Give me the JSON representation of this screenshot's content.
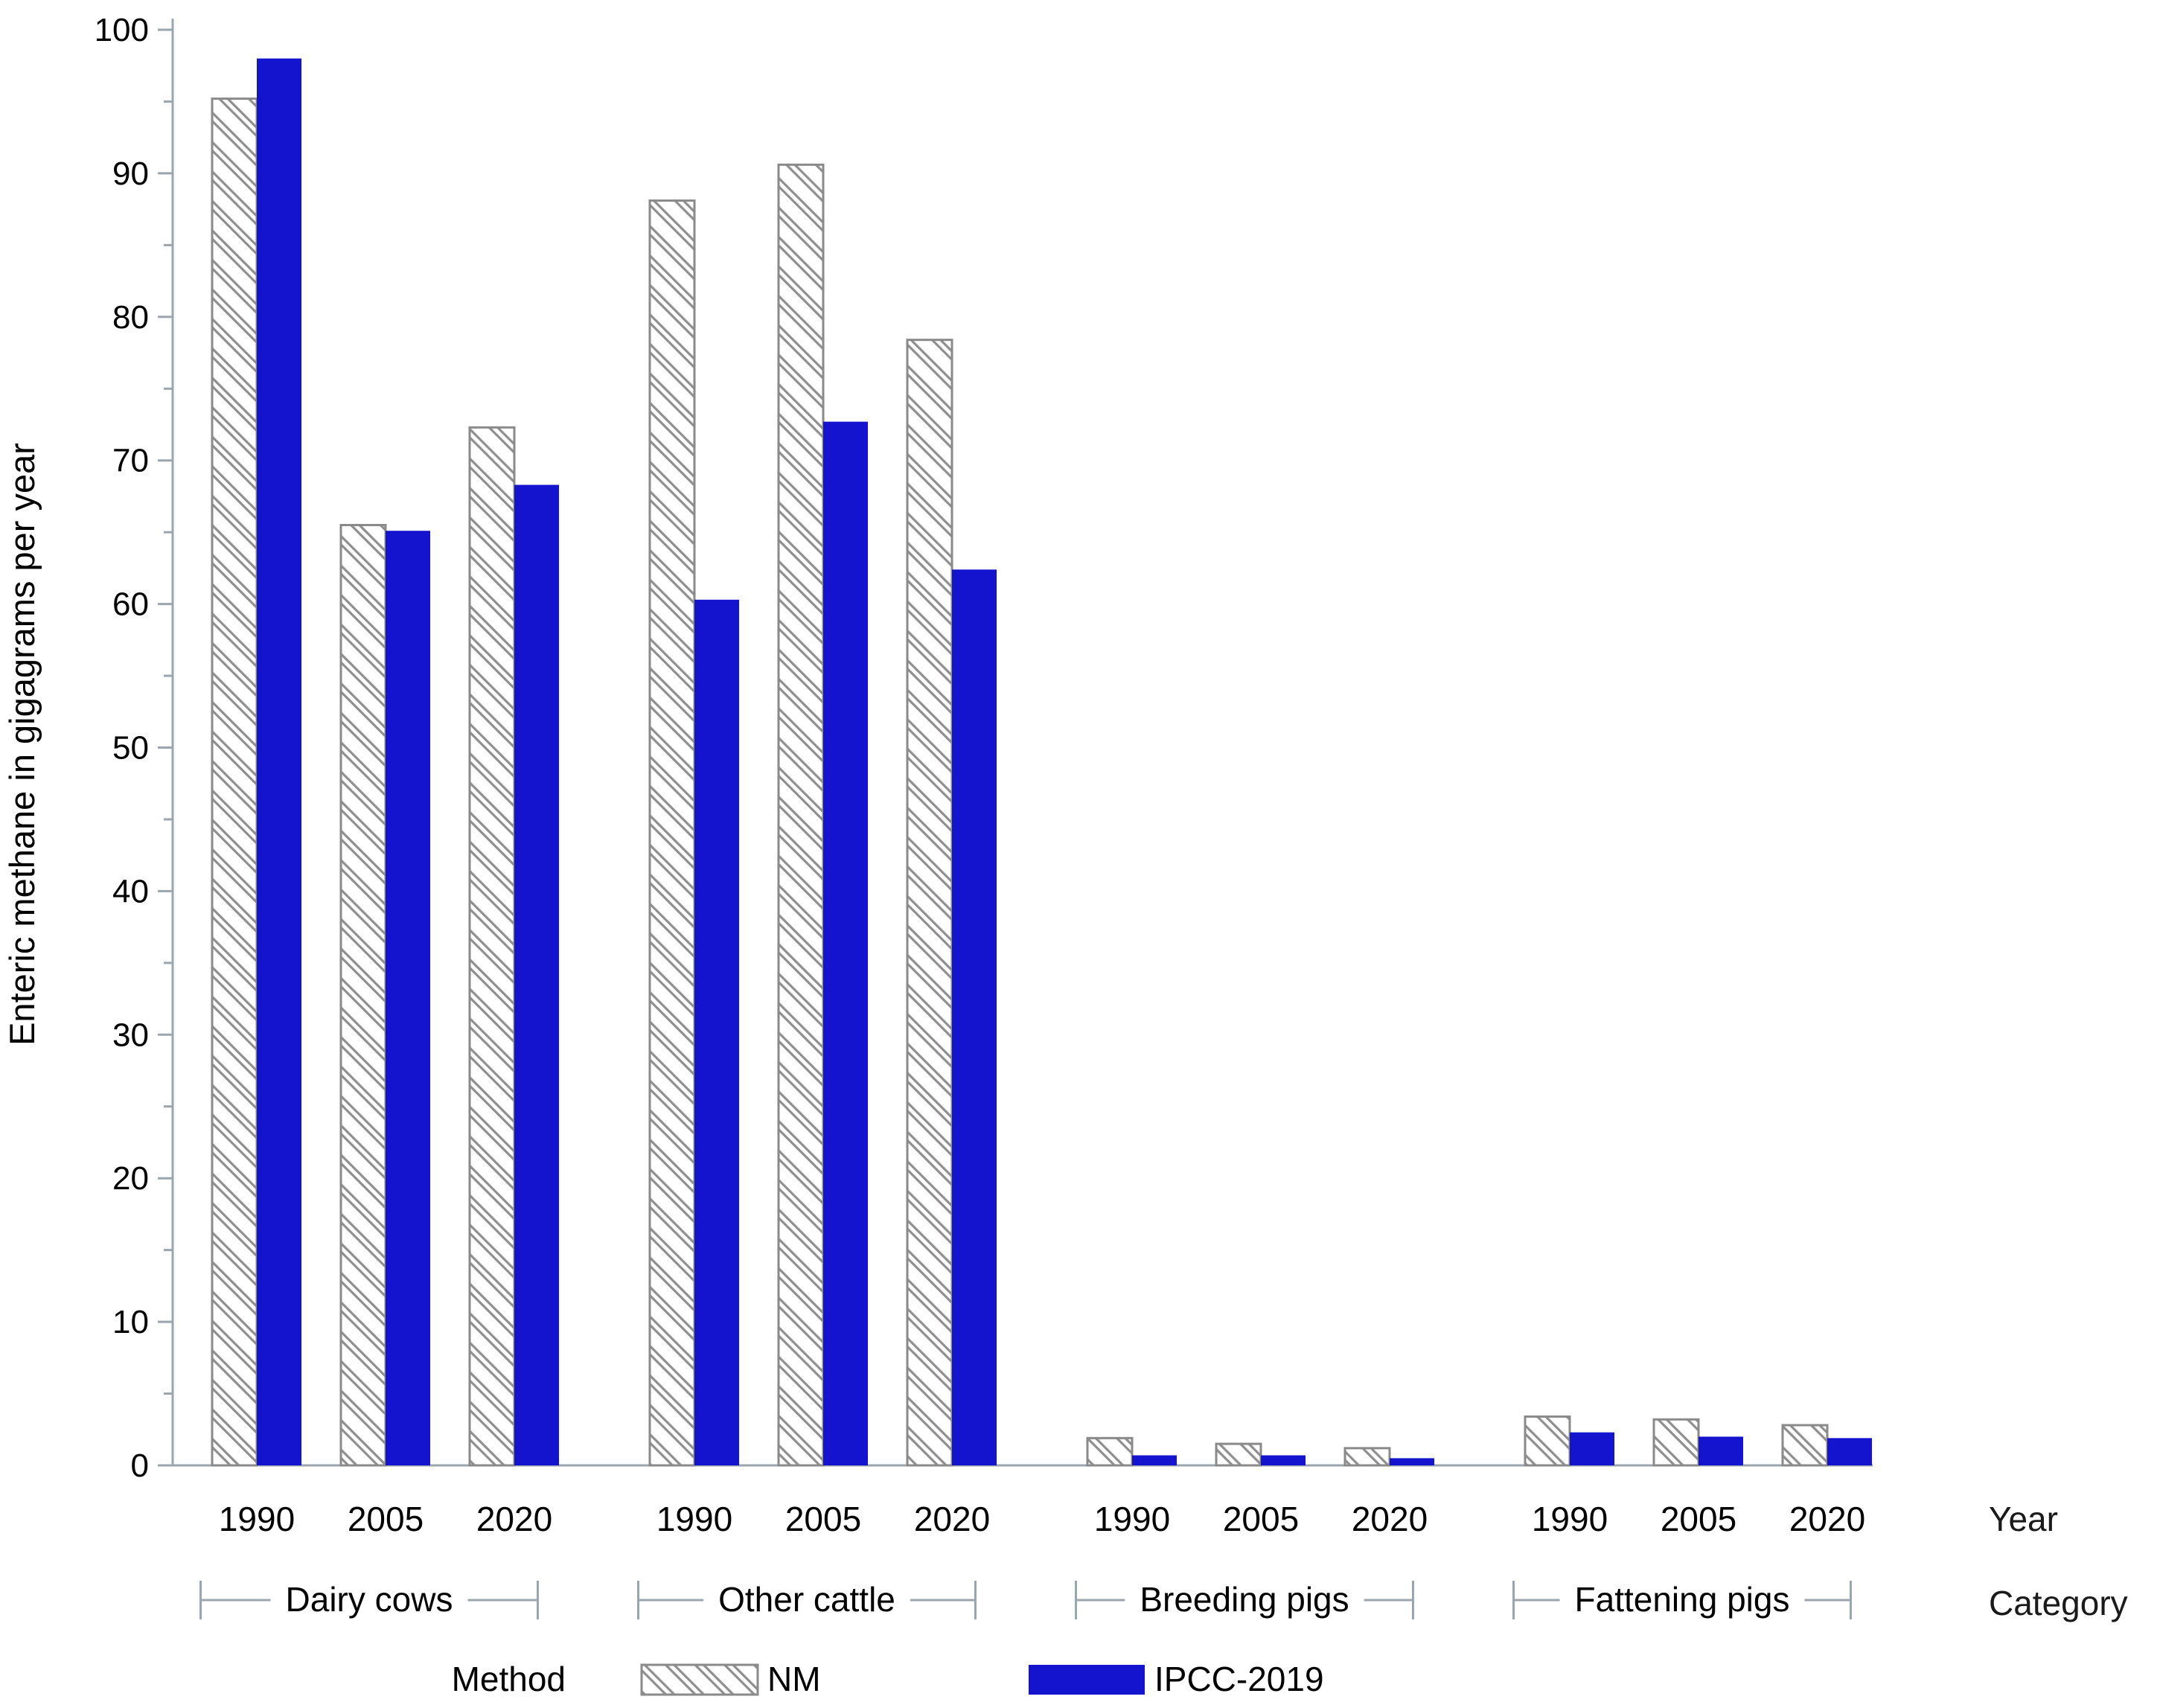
{
  "page": {
    "background": "#ffffff"
  },
  "colors": {
    "bar_blue": "#1414CE",
    "hatch_line": "#8f8f8f",
    "bar_outline": "#8a8a8a",
    "axis": "#9aa5ad",
    "text": "#000000"
  },
  "legend": {
    "title": "Method",
    "entries": [
      {
        "label": "NM",
        "style": "hatched"
      },
      {
        "label": "IPCC-2019",
        "style": "solid",
        "color": "#1414CE"
      }
    ]
  },
  "chart_data": {
    "type": "bar",
    "ylabel": "Enteric methane in gigagrams per year",
    "xlabel_primary": "Year",
    "xlabel_secondary": "Category",
    "ylim": [
      0,
      100
    ],
    "yticks": [
      0,
      10,
      20,
      30,
      40,
      50,
      60,
      70,
      80,
      90,
      100
    ],
    "ytick_minor_step": 5,
    "grid": false,
    "legend_position": "bottom",
    "categories": [
      "Dairy cows",
      "Other cattle",
      "Breeding pigs",
      "Fattening pigs"
    ],
    "years": [
      "1990",
      "2005",
      "2020"
    ],
    "series": [
      {
        "name": "NM",
        "style": "hatched",
        "values": [
          [
            95.2,
            65.5,
            72.3
          ],
          [
            88.1,
            90.6,
            78.4
          ],
          [
            1.9,
            1.5,
            1.2
          ],
          [
            3.4,
            3.2,
            2.8
          ]
        ]
      },
      {
        "name": "IPCC-2019",
        "style": "solid",
        "color": "#1414CE",
        "values": [
          [
            98.0,
            65.1,
            68.3
          ],
          [
            60.3,
            72.7,
            62.4
          ],
          [
            0.7,
            0.7,
            0.5
          ],
          [
            2.3,
            2.0,
            1.9
          ]
        ]
      }
    ]
  }
}
